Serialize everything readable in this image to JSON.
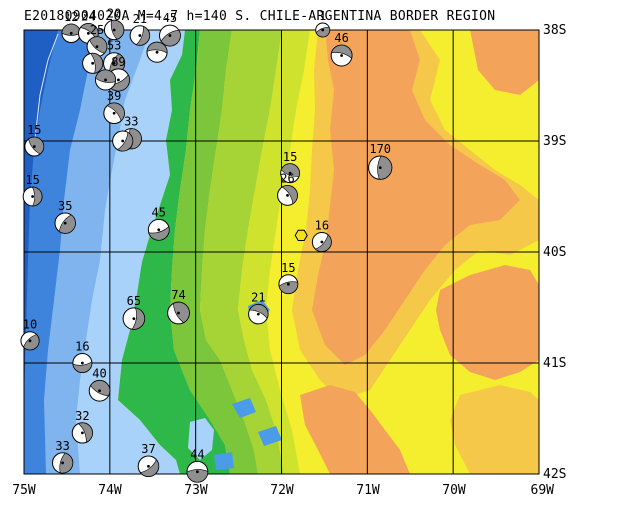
{
  "title": "E20180904020A M=4.7 h=140 S. CHILE-ARGENTINA BORDER REGION",
  "map": {
    "lon_range": [
      -75,
      -69
    ],
    "lat_range": [
      -42,
      -38
    ],
    "lon_ticks": [
      {
        "value": -75,
        "label": "75W"
      },
      {
        "value": -74,
        "label": "74W"
      },
      {
        "value": -73,
        "label": "73W"
      },
      {
        "value": -72,
        "label": "72W"
      },
      {
        "value": -71,
        "label": "71W"
      },
      {
        "value": -70,
        "label": "70W"
      },
      {
        "value": -69,
        "label": "69W"
      }
    ],
    "lat_ticks": [
      {
        "value": -38,
        "label": "38S"
      },
      {
        "value": -39,
        "label": "39S"
      },
      {
        "value": -40,
        "label": "40S"
      },
      {
        "value": -41,
        "label": "41S"
      },
      {
        "value": -42,
        "label": "42S"
      }
    ],
    "grid": true,
    "colors": {
      "deep_ocean": "#1f5fc4",
      "mid_ocean": "#3f84dc",
      "shelf_ocean": "#7fb4ee",
      "coastal_water": "#a8d2fa",
      "lowland_green": "#2fb84a",
      "low_green": "#7bc63a",
      "mid_green": "#a6d436",
      "yellow_green": "#cfe32e",
      "yellow": "#f4ee2e",
      "light_orange": "#f6c84a",
      "orange": "#f4a45a",
      "lake": "#4a9be8",
      "epicenter": "#f2e21a"
    }
  },
  "epicenter": {
    "lon": -71.77,
    "lat": -39.85
  },
  "mechanisms": [
    {
      "lon": -74.45,
      "lat": -38.03,
      "depth": "12"
    },
    {
      "lon": -74.25,
      "lat": -38.03,
      "depth": "24"
    },
    {
      "lon": -73.95,
      "lat": -38.0,
      "depth": "20"
    },
    {
      "lon": -73.65,
      "lat": -38.05,
      "depth": "21"
    },
    {
      "lon": -73.3,
      "lat": -38.05,
      "depth": "45"
    },
    {
      "lon": -73.45,
      "lat": -38.2,
      "depth": ""
    },
    {
      "lon": -74.15,
      "lat": -38.15,
      "depth": "25"
    },
    {
      "lon": -74.2,
      "lat": -38.3,
      "depth": ""
    },
    {
      "lon": -73.95,
      "lat": -38.3,
      "depth": "53"
    },
    {
      "lon": -73.9,
      "lat": -38.45,
      "depth": "89"
    },
    {
      "lon": -74.05,
      "lat": -38.45,
      "depth": ""
    },
    {
      "lon": -73.95,
      "lat": -38.75,
      "depth": "39"
    },
    {
      "lon": -73.75,
      "lat": -38.98,
      "depth": "33"
    },
    {
      "lon": -73.85,
      "lat": -39.0,
      "depth": ""
    },
    {
      "lon": -71.52,
      "lat": -38.0,
      "depth": "1"
    },
    {
      "lon": -71.3,
      "lat": -38.23,
      "depth": "46"
    },
    {
      "lon": -74.88,
      "lat": -39.05,
      "depth": "15"
    },
    {
      "lon": -74.9,
      "lat": -39.5,
      "depth": "15"
    },
    {
      "lon": -74.52,
      "lat": -39.74,
      "depth": "35"
    },
    {
      "lon": -73.43,
      "lat": -39.8,
      "depth": "45"
    },
    {
      "lon": -71.9,
      "lat": -39.29,
      "depth": "15"
    },
    {
      "lon": -71.93,
      "lat": -39.49,
      "depth": "26"
    },
    {
      "lon": -70.85,
      "lat": -39.24,
      "depth": "170"
    },
    {
      "lon": -71.53,
      "lat": -39.91,
      "depth": "16"
    },
    {
      "lon": -71.92,
      "lat": -40.29,
      "depth": "15"
    },
    {
      "lon": -72.27,
      "lat": -40.56,
      "depth": "21"
    },
    {
      "lon": -73.2,
      "lat": -40.55,
      "depth": "74"
    },
    {
      "lon": -73.72,
      "lat": -40.6,
      "depth": "65"
    },
    {
      "lon": -74.93,
      "lat": -40.8,
      "depth": "10"
    },
    {
      "lon": -74.32,
      "lat": -41.0,
      "depth": "16"
    },
    {
      "lon": -74.12,
      "lat": -41.25,
      "depth": "40"
    },
    {
      "lon": -74.32,
      "lat": -41.63,
      "depth": "32"
    },
    {
      "lon": -74.55,
      "lat": -41.9,
      "depth": "33"
    },
    {
      "lon": -73.55,
      "lat": -41.93,
      "depth": "37"
    },
    {
      "lon": -72.98,
      "lat": -41.98,
      "depth": "44"
    }
  ]
}
